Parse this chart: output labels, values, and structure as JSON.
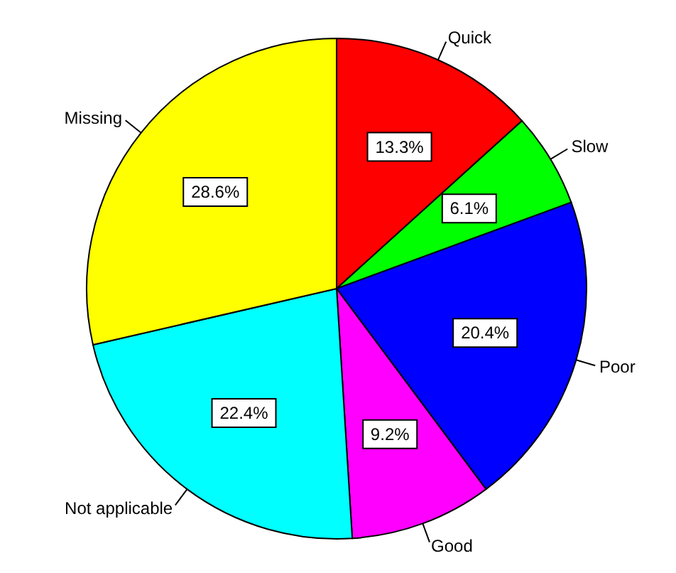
{
  "chart_data": {
    "type": "pie",
    "categories": [
      "Quick",
      "Slow",
      "Poor",
      "Good",
      "Not applicable",
      "Missing"
    ],
    "values": [
      13.3,
      6.1,
      20.4,
      9.2,
      22.4,
      28.6
    ],
    "colors": [
      "#ff0000",
      "#00ff00",
      "#0000ff",
      "#ff00ff",
      "#00ffff",
      "#ffff00"
    ],
    "value_labels": [
      "13.3%",
      "6.1%",
      "20.4%",
      "9.2%",
      "22.4%",
      "28.6%"
    ]
  }
}
